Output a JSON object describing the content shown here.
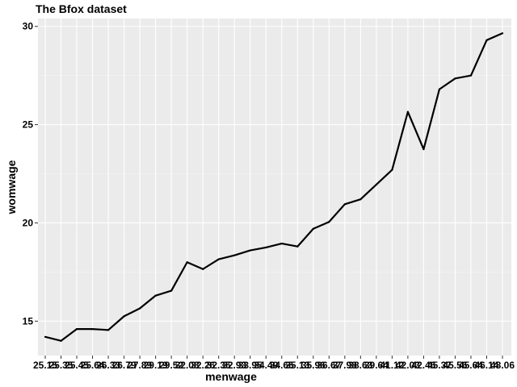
{
  "chart_data": {
    "type": "line",
    "title": "The Bfox dataset",
    "xlabel": "menwage",
    "ylabel": "womwage",
    "categories": [
      "25.15",
      "25.35",
      "25.45",
      "25.64",
      "26.33",
      "26.79",
      "27.89",
      "29.19",
      "29.52",
      "32.08",
      "32.26",
      "32.35",
      "32.93",
      "33.95",
      "34.49",
      "34.65",
      "35.13",
      "35.96",
      "36.67",
      "37.98",
      "38.63",
      "39.64",
      "41.12",
      "42.03",
      "42.46",
      "45.37",
      "45.56",
      "45.64",
      "46.14",
      "48.06"
    ],
    "series": [
      {
        "values": [
          14.2,
          14.0,
          14.6,
          14.6,
          14.55,
          15.25,
          15.65,
          16.3,
          16.55,
          18.0,
          17.65,
          18.15,
          18.35,
          18.6,
          18.75,
          18.95,
          18.8,
          19.7,
          20.05,
          20.95,
          21.2,
          21.95,
          22.7,
          25.65,
          23.75,
          26.8,
          27.35,
          27.5,
          29.3,
          29.65
        ]
      }
    ],
    "yticks": [
      15,
      20,
      25,
      30
    ],
    "ylim": [
      13.25,
      30.4
    ],
    "grid": true
  }
}
